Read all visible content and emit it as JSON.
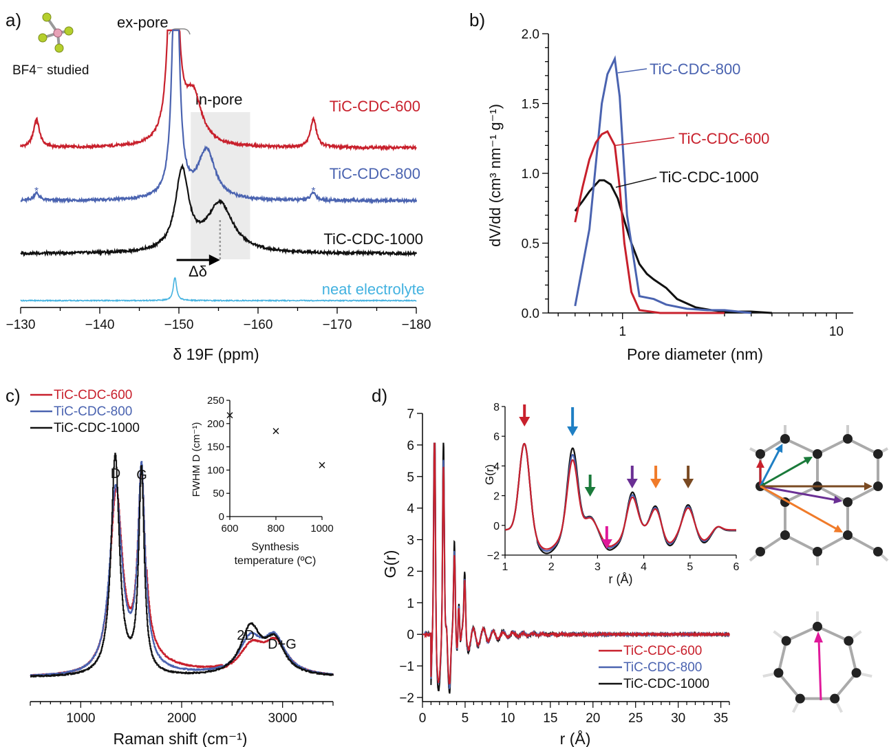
{
  "panel_labels": [
    "a)",
    "b)",
    "c)",
    "d)"
  ],
  "colors": {
    "c600": "#c8202c",
    "c800": "#4a63b0",
    "c1000": "#111111",
    "neat": "#43b2e0",
    "shade": "#ebebeb"
  },
  "chart_data": [
    {
      "id": "a",
      "type": "line",
      "xlabel": "δ 19F (ppm)",
      "xlim": [
        -130,
        -180
      ],
      "x_ticks": [
        -130,
        -140,
        -150,
        -160,
        -170,
        -180
      ],
      "annotations": {
        "ex_pore": "ex-pore",
        "in_pore": "in-pore",
        "molecule_label": "BF4⁻ studied",
        "delta": "Δδ",
        "asterisk": "*"
      },
      "in_pore_region": [
        -151.5,
        -159
      ],
      "series": [
        {
          "name": "TiC-CDC-600",
          "color": "#c8202c",
          "peaks": [
            {
              "x": -149.3,
              "h": 8.0,
              "w": 0.45
            },
            {
              "x": -151.8,
              "h": 0.95,
              "w": 1.3
            },
            {
              "x": -132,
              "h": 0.55,
              "w": 0.45
            },
            {
              "x": -167,
              "h": 0.55,
              "w": 0.45
            }
          ]
        },
        {
          "name": "TiC-CDC-800",
          "color": "#4a63b0",
          "peaks": [
            {
              "x": -149.6,
              "h": 5.8,
              "w": 0.45
            },
            {
              "x": -153.5,
              "h": 0.95,
              "w": 1.3
            },
            {
              "x": -132,
              "h": 0.15,
              "w": 0.4
            },
            {
              "x": -167,
              "h": 0.15,
              "w": 0.4
            }
          ]
        },
        {
          "name": "TiC-CDC-1000",
          "color": "#111111",
          "peaks": [
            {
              "x": -150.4,
              "h": 1.55,
              "w": 1.0
            },
            {
              "x": -155.2,
              "h": 0.95,
              "w": 2.0
            }
          ]
        },
        {
          "name": "neat electrolyte",
          "color": "#43b2e0",
          "peaks": [
            {
              "x": -149.5,
              "h": 0.45,
              "w": 0.25
            }
          ]
        }
      ]
    },
    {
      "id": "b",
      "type": "line",
      "xlabel": "Pore diameter (nm)",
      "ylabel": "dV/dd (cm³ nm⁻¹ g⁻¹)",
      "xscale": "log",
      "xlim": [
        0.45,
        12
      ],
      "ylim": [
        0,
        2.0
      ],
      "y_ticks": [
        "0.0",
        "0.5",
        "1.0",
        "1.5",
        "2.0"
      ],
      "x_tick_labels": [
        {
          "v": 1,
          "t": "1"
        },
        {
          "v": 10,
          "t": "10"
        }
      ],
      "series": [
        {
          "name": "TiC-CDC-800",
          "color": "#4a63b0",
          "x": [
            0.6,
            0.7,
            0.8,
            0.85,
            0.92,
            0.97,
            1.05,
            1.2,
            1.4,
            1.6,
            2.0,
            2.5,
            3.0,
            4.0
          ],
          "y": [
            0.05,
            0.6,
            1.5,
            1.71,
            1.82,
            1.55,
            0.7,
            0.12,
            0.1,
            0.06,
            0.03,
            0.02,
            0.02,
            0.0
          ]
        },
        {
          "name": "TiC-CDC-600",
          "color": "#c8202c",
          "x": [
            0.6,
            0.65,
            0.7,
            0.75,
            0.8,
            0.85,
            0.92,
            0.97,
            1.02,
            1.1,
            1.2,
            1.5,
            2.0,
            3.0
          ],
          "y": [
            0.65,
            0.9,
            1.1,
            1.22,
            1.28,
            1.3,
            1.2,
            0.9,
            0.5,
            0.15,
            0.02,
            0.0,
            0.0,
            0.0
          ]
        },
        {
          "name": "TiC-CDC-1000",
          "color": "#111111",
          "x": [
            0.6,
            0.65,
            0.7,
            0.78,
            0.82,
            0.88,
            0.95,
            1.02,
            1.1,
            1.2,
            1.3,
            1.4,
            1.6,
            1.8,
            2.2,
            2.6,
            3.0,
            4.0,
            5.0
          ],
          "y": [
            0.73,
            0.8,
            0.87,
            0.95,
            0.95,
            0.92,
            0.82,
            0.66,
            0.5,
            0.35,
            0.28,
            0.24,
            0.18,
            0.1,
            0.04,
            0.02,
            0.01,
            0.01,
            0.0
          ]
        }
      ]
    },
    {
      "id": "c",
      "type": "line",
      "xlabel": "Raman shift (cm⁻¹)",
      "xlim": [
        500,
        3500
      ],
      "x_ticks": [
        1000,
        2000,
        3000
      ],
      "peak_labels": [
        "D",
        "G",
        "2D",
        "D+G"
      ],
      "series": [
        {
          "name": "TiC-CDC-600",
          "color": "#c8202c",
          "peaks": [
            {
              "x": 1350,
              "h": 0.78,
              "w": 75
            },
            {
              "x": 1600,
              "h": 0.83,
              "w": 45
            },
            {
              "x": 2690,
              "h": 0.12,
              "w": 150
            },
            {
              "x": 2930,
              "h": 0.13,
              "w": 140
            }
          ],
          "base": 0.03,
          "tail_x": 1650,
          "tail_h": 0.06
        },
        {
          "name": "TiC-CDC-800",
          "color": "#4a63b0",
          "peaks": [
            {
              "x": 1345,
              "h": 0.8,
              "w": 72
            },
            {
              "x": 1600,
              "h": 0.86,
              "w": 43
            },
            {
              "x": 2680,
              "h": 0.15,
              "w": 140
            },
            {
              "x": 2920,
              "h": 0.15,
              "w": 130
            }
          ],
          "base": 0.03,
          "tail_x": 1650,
          "tail_h": 0.02
        },
        {
          "name": "TiC-CDC-1000",
          "color": "#111111",
          "peaks": [
            {
              "x": 1340,
              "h": 0.94,
              "w": 50
            },
            {
              "x": 1600,
              "h": 0.87,
              "w": 33
            },
            {
              "x": 2680,
              "h": 0.2,
              "w": 120
            },
            {
              "x": 2920,
              "h": 0.14,
              "w": 120
            }
          ],
          "base": 0.03,
          "tail_x": 1650,
          "tail_h": 0.0
        }
      ],
      "inset": {
        "type": "scatter",
        "xlabel": "Synthesis temperature (ºC)",
        "ylabel": "FWHM D (cm⁻¹)",
        "xlim": [
          600,
          1000
        ],
        "ylim": [
          0,
          250
        ],
        "x_ticks": [
          600,
          800,
          1000
        ],
        "y_ticks": [
          0,
          50,
          100,
          150,
          200,
          250
        ],
        "x": [
          600,
          800,
          1000
        ],
        "y": [
          218,
          184,
          111
        ],
        "marker": "×"
      }
    },
    {
      "id": "d",
      "type": "line",
      "xlabel": "r (Å)",
      "ylabel": "G(r)",
      "xlim": [
        0,
        36
      ],
      "ylim": [
        -2,
        7
      ],
      "x_ticks": [
        0,
        5,
        10,
        15,
        20,
        25,
        30,
        35
      ],
      "y_ticks": [
        -2,
        -1,
        0,
        1,
        2,
        3,
        4,
        5,
        6,
        7
      ],
      "series": [
        {
          "name": "TiC-CDC-600",
          "color": "#c8202c",
          "scale": 1.0
        },
        {
          "name": "TiC-CDC-800",
          "color": "#4a63b0",
          "scale": 1.05
        },
        {
          "name": "TiC-CDC-1000",
          "color": "#111111",
          "scale": 1.18
        }
      ],
      "peaks": [
        {
          "r": 1.42,
          "h": 6.0
        },
        {
          "r": 2.46,
          "h": 4.8
        },
        {
          "r": 2.84,
          "h": 0.8
        },
        {
          "r": 3.2,
          "h": -0.6
        },
        {
          "r": 3.75,
          "h": 2.3
        },
        {
          "r": 4.26,
          "h": 1.5
        },
        {
          "r": 4.96,
          "h": 1.5
        }
      ],
      "inset": {
        "xlabel": "r (Å)",
        "ylabel": "G(r)",
        "xlim": [
          1,
          6
        ],
        "ylim": [
          -2,
          8
        ],
        "x_ticks": [
          1,
          2,
          3,
          4,
          5,
          6
        ],
        "y_ticks": [
          -2,
          0,
          2,
          4,
          6,
          8
        ],
        "arrows": [
          {
            "r": 1.42,
            "color": "#c8202c"
          },
          {
            "r": 2.46,
            "color": "#1f7fc4"
          },
          {
            "r": 2.84,
            "color": "#1a7a3a"
          },
          {
            "r": 3.2,
            "color": "#e0199a"
          },
          {
            "r": 3.75,
            "color": "#6a2f94"
          },
          {
            "r": 4.26,
            "color": "#f07b2a"
          },
          {
            "r": 4.96,
            "color": "#7a4a22"
          }
        ]
      }
    }
  ]
}
